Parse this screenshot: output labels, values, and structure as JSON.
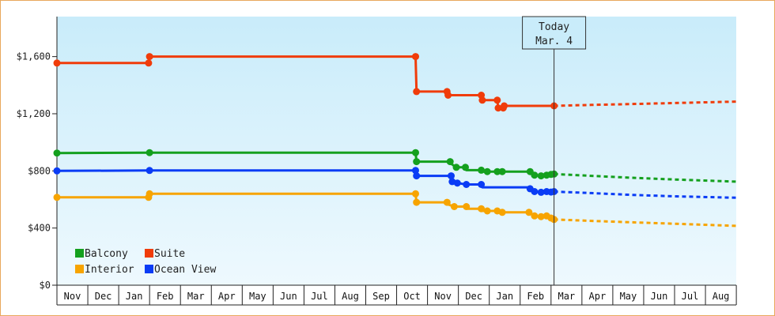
{
  "chart_data": {
    "type": "line",
    "ylim": [
      0,
      1880
    ],
    "yticks": [
      0,
      400,
      800,
      1200,
      1600
    ],
    "ytick_labels": [
      "$0",
      "$400",
      "$800",
      "$1,200",
      "$1,600"
    ],
    "xlim": [
      "2020-11-01",
      "2022-09-01"
    ],
    "month_labels": [
      "Nov",
      "Dec",
      "Jan",
      "Feb",
      "Mar",
      "Apr",
      "May",
      "Jun",
      "Jul",
      "Aug",
      "Sep",
      "Oct",
      "Nov",
      "Dec",
      "Jan",
      "Feb",
      "Mar",
      "Apr",
      "May",
      "Jun",
      "Jul",
      "Aug"
    ],
    "today": {
      "label_line1": "Today",
      "label_line2": "Mar. 4",
      "date": "2022-03-04"
    },
    "legend": [
      {
        "name": "Balcony",
        "color": "#14a01e"
      },
      {
        "name": "Suite",
        "color": "#f03c0a"
      },
      {
        "name": "Interior",
        "color": "#f7a400"
      },
      {
        "name": "Ocean View",
        "color": "#0a3cf5"
      }
    ],
    "series": [
      {
        "name": "Suite",
        "color": "#f03c0a",
        "points": [
          [
            "2020-11-01",
            1555
          ],
          [
            "2021-01-31",
            1555
          ],
          [
            "2021-02-01",
            1600
          ],
          [
            "2021-10-20",
            1600
          ],
          [
            "2021-10-21",
            1355
          ],
          [
            "2021-11-20",
            1355
          ],
          [
            "2021-11-21",
            1330
          ],
          [
            "2021-12-24",
            1330
          ],
          [
            "2021-12-25",
            1295
          ],
          [
            "2022-01-09",
            1295
          ],
          [
            "2022-01-10",
            1240
          ],
          [
            "2022-01-15",
            1240
          ],
          [
            "2022-01-16",
            1255
          ],
          [
            "2022-03-04",
            1255
          ]
        ],
        "markers": [
          [
            "2020-11-01",
            1555
          ],
          [
            "2021-01-31",
            1555
          ],
          [
            "2021-02-01",
            1600
          ],
          [
            "2021-10-20",
            1600
          ],
          [
            "2021-10-21",
            1355
          ],
          [
            "2021-11-20",
            1355
          ],
          [
            "2021-11-21",
            1330
          ],
          [
            "2021-12-24",
            1330
          ],
          [
            "2021-12-25",
            1295
          ],
          [
            "2022-01-09",
            1295
          ],
          [
            "2022-01-10",
            1240
          ],
          [
            "2022-01-15",
            1240
          ],
          [
            "2022-01-16",
            1255
          ],
          [
            "2022-03-04",
            1255
          ]
        ],
        "forecast": [
          [
            "2022-03-04",
            1255
          ],
          [
            "2022-04-10",
            1262
          ],
          [
            "2022-05-20",
            1268
          ],
          [
            "2022-07-01",
            1275
          ],
          [
            "2022-09-01",
            1285
          ]
        ]
      },
      {
        "name": "Balcony",
        "color": "#14a01e",
        "points": [
          [
            "2020-11-01",
            925
          ],
          [
            "2021-02-01",
            928
          ],
          [
            "2021-10-20",
            928
          ],
          [
            "2021-10-21",
            865
          ],
          [
            "2021-11-23",
            865
          ],
          [
            "2021-11-24",
            850
          ],
          [
            "2021-11-29",
            825
          ],
          [
            "2021-12-08",
            825
          ],
          [
            "2021-12-09",
            805
          ],
          [
            "2021-12-24",
            805
          ],
          [
            "2021-12-25",
            795
          ],
          [
            "2022-01-09",
            795
          ],
          [
            "2022-01-10",
            795
          ],
          [
            "2022-02-10",
            795
          ],
          [
            "2022-02-14",
            770
          ],
          [
            "2022-02-20",
            765
          ],
          [
            "2022-02-25",
            770
          ],
          [
            "2022-03-01",
            775
          ],
          [
            "2022-03-04",
            778
          ]
        ],
        "markers": [
          [
            "2020-11-01",
            925
          ],
          [
            "2021-02-01",
            928
          ],
          [
            "2021-10-20",
            928
          ],
          [
            "2021-10-21",
            865
          ],
          [
            "2021-11-23",
            865
          ],
          [
            "2021-11-29",
            825
          ],
          [
            "2021-12-08",
            825
          ],
          [
            "2021-12-24",
            805
          ],
          [
            "2021-12-30",
            795
          ],
          [
            "2022-01-09",
            795
          ],
          [
            "2022-01-14",
            795
          ],
          [
            "2022-02-10",
            795
          ],
          [
            "2022-02-14",
            770
          ],
          [
            "2022-02-20",
            765
          ],
          [
            "2022-02-25",
            770
          ],
          [
            "2022-03-01",
            775
          ],
          [
            "2022-03-04",
            778
          ]
        ],
        "forecast": [
          [
            "2022-03-04",
            778
          ],
          [
            "2022-04-10",
            765
          ],
          [
            "2022-05-20",
            752
          ],
          [
            "2022-07-01",
            740
          ],
          [
            "2022-09-01",
            725
          ]
        ]
      },
      {
        "name": "Ocean View",
        "color": "#0a3cf5",
        "points": [
          [
            "2020-11-01",
            800
          ],
          [
            "2021-02-01",
            803
          ],
          [
            "2021-10-20",
            803
          ],
          [
            "2021-10-21",
            765
          ],
          [
            "2021-11-24",
            765
          ],
          [
            "2021-11-25",
            725
          ],
          [
            "2021-11-30",
            715
          ],
          [
            "2021-12-09",
            705
          ],
          [
            "2021-12-24",
            705
          ],
          [
            "2021-12-25",
            685
          ],
          [
            "2022-02-09",
            685
          ],
          [
            "2022-02-10",
            675
          ],
          [
            "2022-02-14",
            655
          ],
          [
            "2022-02-20",
            650
          ],
          [
            "2022-02-25",
            655
          ],
          [
            "2022-03-01",
            652
          ],
          [
            "2022-03-04",
            655
          ]
        ],
        "markers": [
          [
            "2020-11-01",
            800
          ],
          [
            "2021-02-01",
            803
          ],
          [
            "2021-10-20",
            803
          ],
          [
            "2021-10-21",
            765
          ],
          [
            "2021-11-24",
            765
          ],
          [
            "2021-11-25",
            725
          ],
          [
            "2021-11-30",
            715
          ],
          [
            "2021-12-09",
            705
          ],
          [
            "2021-12-24",
            705
          ],
          [
            "2022-02-10",
            675
          ],
          [
            "2022-02-14",
            655
          ],
          [
            "2022-02-20",
            650
          ],
          [
            "2022-02-25",
            655
          ],
          [
            "2022-03-01",
            652
          ],
          [
            "2022-03-04",
            655
          ]
        ],
        "forecast": [
          [
            "2022-03-04",
            655
          ],
          [
            "2022-04-10",
            645
          ],
          [
            "2022-05-20",
            632
          ],
          [
            "2022-07-01",
            622
          ],
          [
            "2022-09-01",
            612
          ]
        ]
      },
      {
        "name": "Interior",
        "color": "#f7a400",
        "points": [
          [
            "2020-11-01",
            615
          ],
          [
            "2021-01-31",
            615
          ],
          [
            "2021-02-01",
            640
          ],
          [
            "2021-10-20",
            640
          ],
          [
            "2021-10-21",
            580
          ],
          [
            "2021-11-20",
            580
          ],
          [
            "2021-11-21",
            565
          ],
          [
            "2021-11-27",
            550
          ],
          [
            "2021-12-09",
            550
          ],
          [
            "2021-12-10",
            535
          ],
          [
            "2021-12-24",
            535
          ],
          [
            "2021-12-25",
            520
          ],
          [
            "2022-01-09",
            520
          ],
          [
            "2022-01-10",
            510
          ],
          [
            "2022-02-09",
            510
          ],
          [
            "2022-02-14",
            485
          ],
          [
            "2022-02-20",
            480
          ],
          [
            "2022-02-25",
            485
          ],
          [
            "2022-03-01",
            470
          ],
          [
            "2022-03-04",
            460
          ]
        ],
        "markers": [
          [
            "2020-11-01",
            615
          ],
          [
            "2021-01-31",
            615
          ],
          [
            "2021-02-01",
            640
          ],
          [
            "2021-10-20",
            640
          ],
          [
            "2021-10-21",
            580
          ],
          [
            "2021-11-20",
            580
          ],
          [
            "2021-11-27",
            550
          ],
          [
            "2021-12-09",
            550
          ],
          [
            "2021-12-24",
            535
          ],
          [
            "2021-12-30",
            520
          ],
          [
            "2022-01-09",
            520
          ],
          [
            "2022-01-14",
            510
          ],
          [
            "2022-02-09",
            510
          ],
          [
            "2022-02-14",
            485
          ],
          [
            "2022-02-20",
            480
          ],
          [
            "2022-02-25",
            485
          ],
          [
            "2022-03-01",
            470
          ],
          [
            "2022-03-04",
            460
          ]
        ],
        "forecast": [
          [
            "2022-03-04",
            460
          ],
          [
            "2022-04-10",
            450
          ],
          [
            "2022-05-20",
            440
          ],
          [
            "2022-07-01",
            430
          ],
          [
            "2022-09-01",
            415
          ]
        ]
      }
    ]
  }
}
